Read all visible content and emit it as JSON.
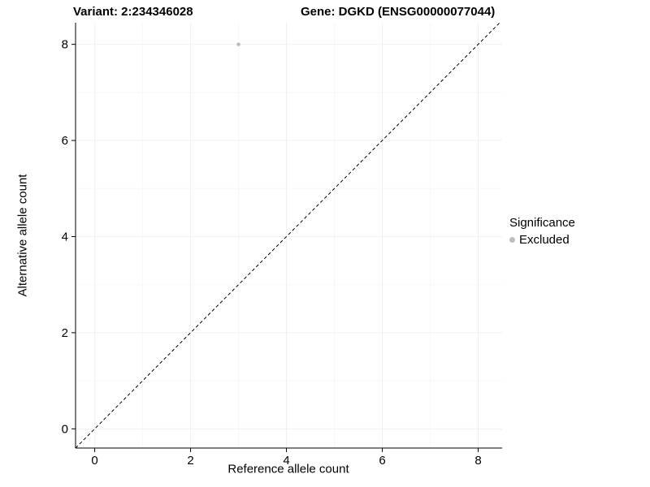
{
  "chart_data": {
    "type": "scatter",
    "title_left": "Variant: 2:234346028",
    "title_right": "Gene: DGKD (ENSG00000077044)",
    "xlabel": "Reference allele count",
    "ylabel": "Alternative allele count",
    "xlim": [
      -0.4,
      8.5
    ],
    "ylim": [
      -0.4,
      8.45
    ],
    "x_ticks": [
      0,
      2,
      4,
      6,
      8
    ],
    "y_ticks": [
      0,
      2,
      4,
      6,
      8
    ],
    "x_minor_ticks": [
      1,
      3,
      5,
      7
    ],
    "y_minor_ticks": [
      1,
      3,
      5,
      7
    ],
    "grid": "faint",
    "identity_line": {
      "style": "dashed",
      "color": "#000000"
    },
    "series": [
      {
        "name": "Excluded",
        "color": "#bdbdbd",
        "points": [
          {
            "x": 3,
            "y": 8
          }
        ]
      }
    ],
    "legend": {
      "title": "Significance",
      "position": "right",
      "items": [
        {
          "label": "Excluded",
          "color": "#bdbdbd"
        }
      ]
    }
  }
}
